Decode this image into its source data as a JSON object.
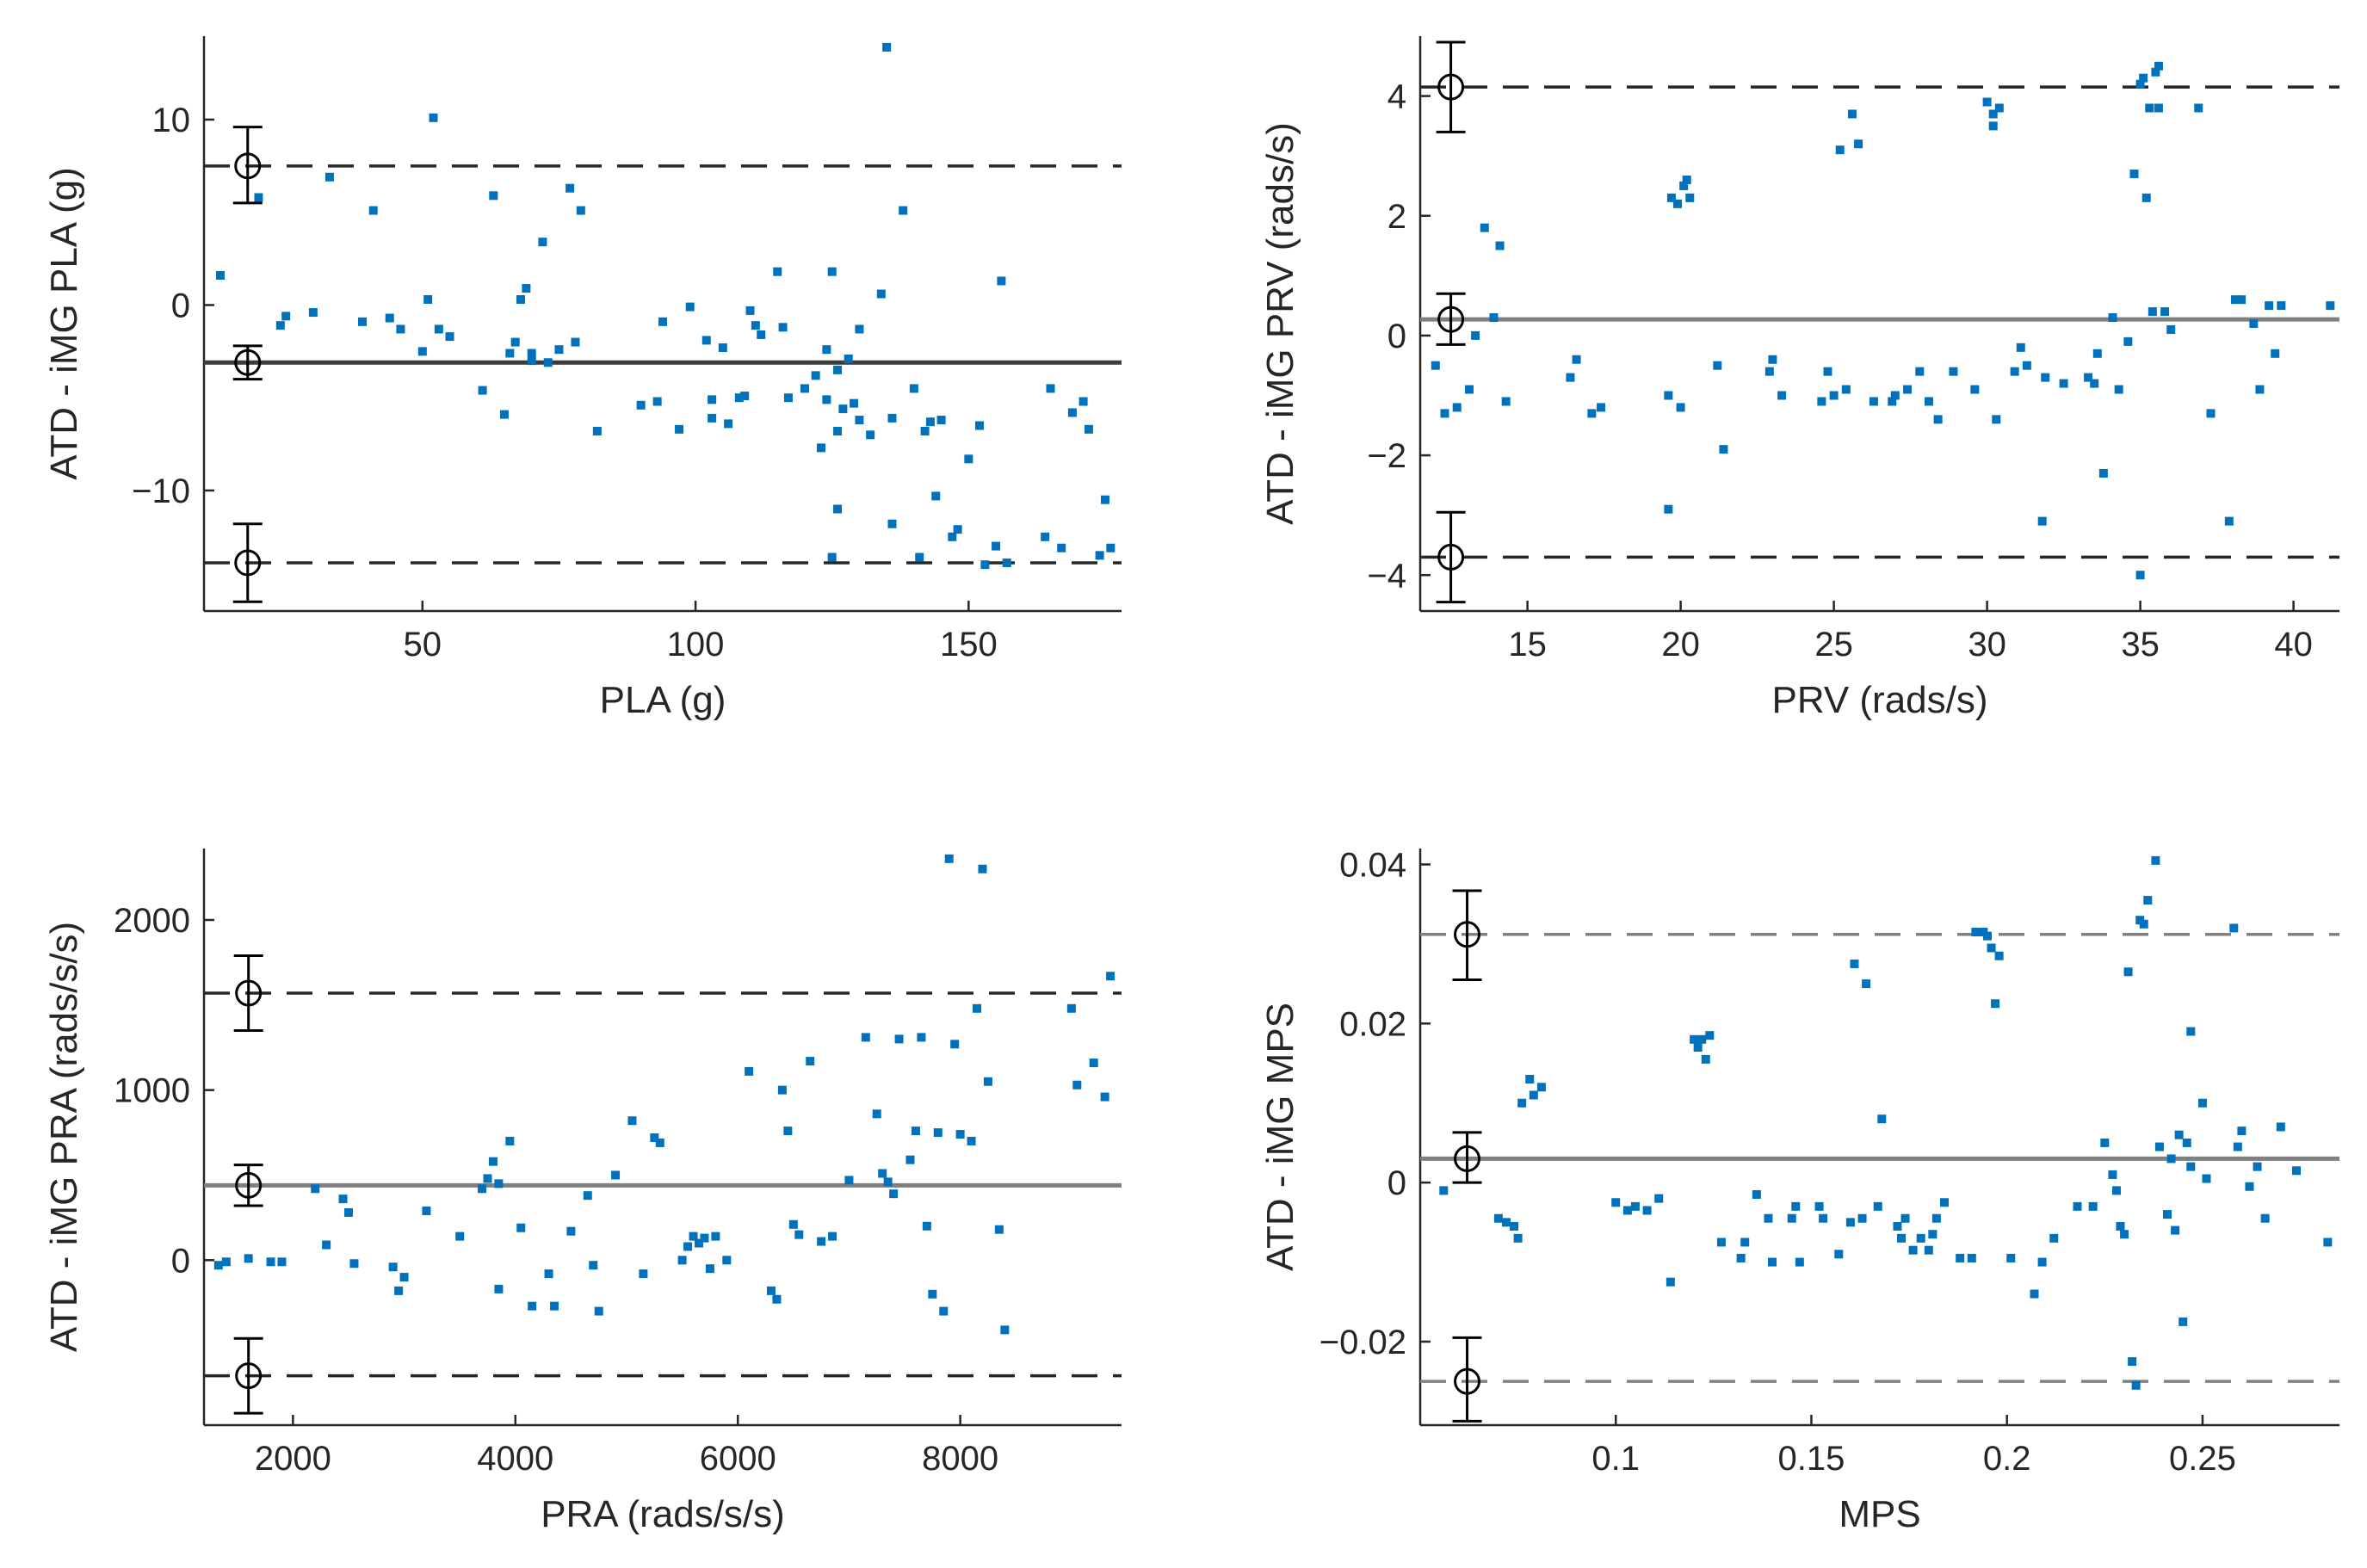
{
  "figure": {
    "colors": {
      "points": "#0072BD",
      "axes": "#262626",
      "mean_line_dark": "#3c3c3c",
      "mean_line_gray": "#808080",
      "limit_line_dark": "#262626",
      "limit_line_gray": "#808080",
      "marker": "#000000"
    }
  },
  "chart_data": [
    {
      "id": "pla",
      "type": "scatter",
      "title": "",
      "xlabel": "PLA (g)",
      "ylabel": "ATD - iMG PLA (g)",
      "xlim": [
        10,
        178
      ],
      "ylim": [
        -16.5,
        14.5
      ],
      "xticks": [
        50,
        100,
        150
      ],
      "xtick_labels": [
        "50",
        "100",
        "150"
      ],
      "yticks": [
        -10,
        0,
        10
      ],
      "ytick_labels": [
        "−10",
        "0",
        "10"
      ],
      "mean": -3.1,
      "mean_ci": [
        -4.0,
        -2.2
      ],
      "lower_loa": -13.9,
      "lower_loa_ci": [
        -16.0,
        -11.8
      ],
      "upper_loa": 7.5,
      "upper_loa_ci": [
        5.5,
        9.6
      ],
      "marker_x": 18,
      "mean_color": "#3c3c3c",
      "loa_color": "#262626",
      "x": [
        13,
        20,
        24,
        25,
        30,
        33,
        39,
        41,
        44,
        46,
        50,
        51,
        52,
        53,
        55,
        61,
        63,
        65,
        66,
        67,
        68,
        69,
        70,
        70,
        72,
        73,
        75,
        77,
        78,
        79,
        82,
        90,
        93,
        94,
        97,
        99,
        102,
        103,
        103,
        105,
        106,
        108,
        109,
        110,
        111,
        112,
        115,
        116,
        117,
        120,
        122,
        123,
        124,
        124,
        125,
        125,
        126,
        126,
        126,
        127,
        128,
        129,
        130,
        130,
        132,
        134,
        135,
        136,
        136,
        138,
        140,
        141,
        142,
        143,
        144,
        145,
        147,
        148,
        150,
        152,
        153,
        155,
        156,
        157,
        164,
        165,
        167,
        169,
        171,
        172,
        174,
        175,
        176
      ],
      "y": [
        1.6,
        5.8,
        -1.1,
        -0.6,
        -0.4,
        6.9,
        -0.9,
        5.1,
        -0.7,
        -1.3,
        -2.5,
        0.3,
        10.1,
        -1.3,
        -1.7,
        -4.6,
        5.9,
        -5.9,
        -2.6,
        -2.0,
        0.3,
        0.9,
        -2.6,
        -3.0,
        3.4,
        -3.1,
        -2.4,
        6.3,
        -2.0,
        5.1,
        -6.8,
        -5.4,
        -5.2,
        -0.9,
        -6.7,
        -0.1,
        -1.9,
        -5.1,
        -6.1,
        -2.3,
        -6.4,
        -5.0,
        -4.9,
        -0.3,
        -1.1,
        -1.6,
        1.8,
        -1.2,
        -5.0,
        -4.5,
        -3.8,
        -7.7,
        -5.1,
        -2.4,
        -13.6,
        1.8,
        -6.8,
        -11.0,
        -3.5,
        -5.6,
        -2.9,
        -5.3,
        -6.2,
        -1.3,
        -7.0,
        0.6,
        13.9,
        -6.1,
        -11.8,
        5.1,
        -4.5,
        -13.6,
        -6.8,
        -6.3,
        -10.3,
        -6.2,
        -12.5,
        -12.1,
        -8.3,
        -6.5,
        -14.0,
        -13.0,
        1.3,
        -13.9,
        -12.5,
        -4.5,
        -13.1,
        -5.8,
        -5.2,
        -6.7,
        -13.5,
        -10.5,
        -13.1
      ]
    },
    {
      "id": "prv",
      "type": "scatter",
      "title": "",
      "xlabel": "PRV (rads/s)",
      "ylabel": "ATD - iMG PRV (rads/s)",
      "xlim": [
        11.5,
        41.5
      ],
      "ylim": [
        -4.6,
        5.0
      ],
      "xticks": [
        15,
        20,
        25,
        30,
        35,
        40
      ],
      "xtick_labels": [
        "15",
        "20",
        "25",
        "30",
        "35",
        "40"
      ],
      "yticks": [
        -4,
        -2,
        0,
        2,
        4
      ],
      "ytick_labels": [
        "−4",
        "−2",
        "0",
        "2",
        "4"
      ],
      "mean": 0.27,
      "mean_ci": [
        -0.15,
        0.7
      ],
      "lower_loa": -3.7,
      "lower_loa_ci": [
        -4.45,
        -2.95
      ],
      "upper_loa": 4.15,
      "upper_loa_ci": [
        3.4,
        4.9
      ],
      "marker_x": 12.5,
      "mean_color": "#808080",
      "loa_color": "#262626",
      "x": [
        12.0,
        12.3,
        12.7,
        13.1,
        13.3,
        13.6,
        13.9,
        14.1,
        14.3,
        16.4,
        16.6,
        17.1,
        17.4,
        19.6,
        19.6,
        19.7,
        19.9,
        20.0,
        20.1,
        20.2,
        20.3,
        21.2,
        21.4,
        22.9,
        23.0,
        23.3,
        24.6,
        24.8,
        25.0,
        25.2,
        25.4,
        25.6,
        25.8,
        26.3,
        26.9,
        27.0,
        27.4,
        27.8,
        28.1,
        28.4,
        28.9,
        29.6,
        30.0,
        30.2,
        30.2,
        30.3,
        30.4,
        30.9,
        31.1,
        31.3,
        31.8,
        31.9,
        32.5,
        33.3,
        33.5,
        33.6,
        33.8,
        34.1,
        34.3,
        34.6,
        34.8,
        35.0,
        35.0,
        35.1,
        35.2,
        35.3,
        35.4,
        35.5,
        35.6,
        35.6,
        35.8,
        36.0,
        36.9,
        37.3,
        37.9,
        38.1,
        38.3,
        38.7,
        38.9,
        39.2,
        39.4,
        39.6,
        41.2
      ],
      "y": [
        -0.5,
        -1.3,
        -1.2,
        -0.9,
        0.0,
        1.8,
        0.3,
        1.5,
        -1.1,
        -0.7,
        -0.4,
        -1.3,
        -1.2,
        -2.9,
        -1.0,
        2.3,
        2.2,
        -1.2,
        2.5,
        2.6,
        2.3,
        -0.5,
        -1.9,
        -0.6,
        -0.4,
        -1.0,
        -1.1,
        -0.6,
        -1.0,
        3.1,
        -0.9,
        3.7,
        3.2,
        -1.1,
        -1.1,
        -1.0,
        -0.9,
        -0.6,
        -1.1,
        -1.4,
        -0.6,
        -0.9,
        3.9,
        3.7,
        3.5,
        -1.4,
        3.8,
        -0.6,
        -0.2,
        -0.5,
        -3.1,
        -0.7,
        -0.8,
        -0.7,
        -0.8,
        -0.3,
        -2.3,
        0.3,
        -0.9,
        -0.1,
        2.7,
        -4.0,
        4.2,
        4.3,
        2.3,
        3.8,
        0.4,
        4.4,
        4.5,
        3.8,
        0.4,
        0.1,
        3.8,
        -1.3,
        -3.1,
        0.6,
        0.6,
        0.2,
        -0.9,
        0.5,
        -0.3,
        0.5,
        0.5
      ]
    },
    {
      "id": "pra",
      "type": "scatter",
      "title": "",
      "xlabel": "PRA (rads/s/s)",
      "ylabel": "ATD - iMG PRA (rads/s/s)",
      "xlim": [
        1200,
        9450
      ],
      "ylim": [
        -970,
        2420
      ],
      "xticks": [
        2000,
        4000,
        6000,
        8000
      ],
      "xtick_labels": [
        "2000",
        "4000",
        "6000",
        "8000"
      ],
      "yticks": [
        0,
        1000,
        2000
      ],
      "ytick_labels": [
        "0",
        "1000",
        "2000"
      ],
      "mean": 440,
      "mean_ci": [
        320,
        560
      ],
      "lower_loa": -680,
      "lower_loa_ci": [
        -900,
        -460
      ],
      "upper_loa": 1570,
      "upper_loa_ci": [
        1350,
        1790
      ],
      "marker_x": 1600,
      "mean_color": "#808080",
      "loa_color": "#262626",
      "x": [
        1330,
        1400,
        1600,
        1800,
        1900,
        2200,
        2300,
        2450,
        2500,
        2550,
        2900,
        2950,
        3000,
        3200,
        3500,
        3700,
        3750,
        3800,
        3850,
        3850,
        3950,
        4050,
        4150,
        4300,
        4350,
        4500,
        4650,
        4700,
        4750,
        4900,
        5050,
        5150,
        5250,
        5300,
        5500,
        5550,
        5600,
        5650,
        5700,
        5750,
        5800,
        5900,
        6100,
        6300,
        6350,
        6400,
        6450,
        6500,
        6550,
        6650,
        6750,
        6850,
        7000,
        7150,
        7250,
        7300,
        7350,
        7400,
        7450,
        7550,
        7600,
        7650,
        7700,
        7750,
        7800,
        7850,
        7900,
        7950,
        8000,
        8100,
        8150,
        8200,
        8250,
        8350,
        8400,
        9000,
        9050,
        9200,
        9300,
        9350
      ],
      "y": [
        -30,
        -10,
        10,
        -10,
        -10,
        420,
        90,
        360,
        280,
        -20,
        -40,
        -180,
        -100,
        290,
        140,
        420,
        480,
        580,
        -170,
        450,
        700,
        190,
        -270,
        -80,
        -270,
        170,
        380,
        -30,
        -300,
        500,
        820,
        -80,
        720,
        690,
        0,
        80,
        140,
        100,
        130,
        -50,
        140,
        0,
        1110,
        -180,
        -230,
        1000,
        760,
        210,
        150,
        1170,
        110,
        140,
        470,
        1310,
        860,
        510,
        460,
        390,
        1300,
        590,
        760,
        1310,
        200,
        -200,
        750,
        -300,
        2360,
        1270,
        740,
        700,
        1480,
        2300,
        1050,
        180,
        -410,
        1480,
        1030,
        1160,
        960,
        1670
      ]
    },
    {
      "id": "mps",
      "type": "scatter",
      "title": "",
      "xlabel": "MPS",
      "ylabel": "ATD - iMG MPS",
      "xlim": [
        0.05,
        0.285
      ],
      "ylim": [
        -0.0305,
        0.042
      ],
      "xticks": [
        0.1,
        0.15,
        0.2,
        0.25
      ],
      "xtick_labels": [
        "0.1",
        "0.15",
        "0.2",
        "0.25"
      ],
      "yticks": [
        -0.02,
        0,
        0.02,
        0.04
      ],
      "ytick_labels": [
        "−0.02",
        "0",
        "0.02",
        "0.04"
      ],
      "mean": 0.003,
      "mean_ci": [
        0.0,
        0.0063
      ],
      "lower_loa": -0.025,
      "lower_loa_ci": [
        -0.03,
        -0.0195
      ],
      "upper_loa": 0.0312,
      "upper_loa_ci": [
        0.0255,
        0.0367
      ],
      "marker_x": 0.062,
      "mean_color": "#808080",
      "loa_color": "#808080",
      "x": [
        0.056,
        0.07,
        0.072,
        0.074,
        0.075,
        0.076,
        0.078,
        0.079,
        0.081,
        0.1,
        0.103,
        0.105,
        0.108,
        0.111,
        0.114,
        0.12,
        0.121,
        0.122,
        0.123,
        0.124,
        0.127,
        0.132,
        0.133,
        0.136,
        0.139,
        0.14,
        0.145,
        0.146,
        0.147,
        0.152,
        0.153,
        0.157,
        0.16,
        0.161,
        0.163,
        0.164,
        0.167,
        0.168,
        0.172,
        0.173,
        0.174,
        0.176,
        0.178,
        0.18,
        0.181,
        0.182,
        0.184,
        0.188,
        0.191,
        0.192,
        0.194,
        0.195,
        0.196,
        0.197,
        0.198,
        0.201,
        0.207,
        0.209,
        0.212,
        0.218,
        0.222,
        0.225,
        0.227,
        0.228,
        0.229,
        0.23,
        0.231,
        0.232,
        0.233,
        0.234,
        0.235,
        0.236,
        0.238,
        0.239,
        0.241,
        0.242,
        0.243,
        0.244,
        0.245,
        0.246,
        0.247,
        0.247,
        0.25,
        0.251,
        0.258,
        0.259,
        0.26,
        0.262,
        0.264,
        0.266,
        0.27,
        0.274,
        0.282
      ],
      "y": [
        -0.001,
        -0.0045,
        -0.005,
        -0.0055,
        -0.007,
        0.01,
        0.013,
        0.011,
        0.012,
        -0.0025,
        -0.0035,
        -0.003,
        -0.0035,
        -0.002,
        -0.0125,
        0.018,
        0.017,
        0.018,
        0.0155,
        0.0185,
        -0.0075,
        -0.0095,
        -0.0075,
        -0.0015,
        -0.0045,
        -0.01,
        -0.0045,
        -0.003,
        -0.01,
        -0.003,
        -0.0045,
        -0.009,
        -0.005,
        0.0275,
        -0.0045,
        0.025,
        -0.003,
        0.008,
        -0.0055,
        -0.007,
        -0.0045,
        -0.0085,
        -0.007,
        -0.0085,
        -0.0065,
        -0.0045,
        -0.0025,
        -0.0095,
        -0.0095,
        0.0315,
        0.0315,
        0.031,
        0.0295,
        0.0225,
        0.0285,
        -0.0095,
        -0.014,
        -0.01,
        -0.007,
        -0.003,
        -0.003,
        0.005,
        0.001,
        -0.001,
        -0.0055,
        -0.0065,
        0.0265,
        -0.0225,
        -0.0255,
        0.033,
        0.0325,
        0.0355,
        0.0405,
        0.0045,
        -0.004,
        0.003,
        -0.006,
        0.006,
        -0.0175,
        0.005,
        0.002,
        0.019,
        0.01,
        0.0005,
        0.032,
        0.0045,
        0.0065,
        -0.0005,
        0.002,
        -0.0045,
        0.007,
        0.0015,
        -0.0075
      ]
    }
  ]
}
